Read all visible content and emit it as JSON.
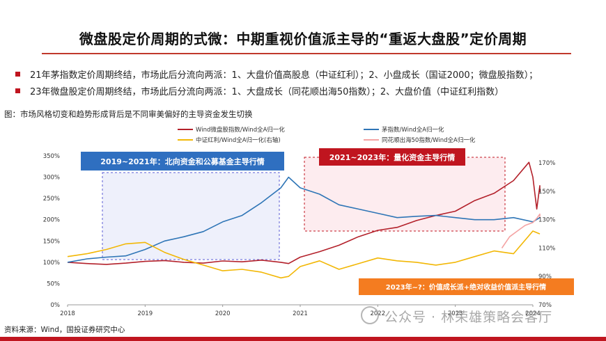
{
  "header": {
    "title": "微盘股定价周期的式微：中期重视价值派主导的“重返大盘股”定价周期",
    "bullets": [
      "21年茅指数定价周期终结，市场此后分流向两派：1、大盘价值高股息（中证红利）；2、小盘成长（国证2000；微盘股指数）；",
      "23年微盘股定价周期终结，市场此后分流向两派：1、大盘成长（同花顺出海50指数）；2、大盘价值（中证红利指数）"
    ],
    "figure_caption": "图：市场风格切变和趋势形成背后是不同审美偏好的主导资金发生切换"
  },
  "footer": {
    "source": "资料来源：Wind，国投证券研究中心",
    "watermark": "公众号 · 林荣雄策略会客厅"
  },
  "colors": {
    "accent": "#c0151f",
    "micro": "#b3202a",
    "mao": "#2e75b6",
    "dividend": "#f2b705",
    "overseas": "#f4a3a3",
    "box_blue": "#2f6fc0",
    "box_red": "#c0151f",
    "box_orange": "#f47c20"
  },
  "chart_data": {
    "type": "line",
    "x_ticks": [
      "2018",
      "2019",
      "2020",
      "2021",
      "2022",
      "2023",
      "2024"
    ],
    "y_left_ticks": [
      "0%",
      "50%",
      "100%",
      "150%",
      "200%",
      "250%",
      "300%",
      "350%"
    ],
    "y_left_range": [
      0,
      350
    ],
    "y_right_ticks": [
      "70%",
      "90%",
      "110%",
      "130%",
      "150%",
      "170%"
    ],
    "y_right_range": [
      70,
      175
    ],
    "legend": [
      "Wind微盘股指数/Wind全A归一化",
      "茅指数/Wind全A归一化",
      "中证红利/Wind全A归一化(右轴)",
      "同花顺出海50指数/Wind全A归一化"
    ],
    "annotations": [
      "2019~2021年：北向资金和公募基金主导行情",
      "2021~2023年：量化资金主导行情",
      "2023年~?：价值成长派+绝对收益价值派主导行情"
    ],
    "series": [
      {
        "name": "Wind微盘股指数/Wind全A归一化",
        "axis": "left",
        "x": [
          2018.0,
          2018.25,
          2018.5,
          2018.75,
          2019.0,
          2019.25,
          2019.5,
          2019.75,
          2020.0,
          2020.25,
          2020.5,
          2020.75,
          2020.85,
          2021.0,
          2021.25,
          2021.5,
          2021.75,
          2022.0,
          2022.25,
          2022.5,
          2022.75,
          2023.0,
          2023.25,
          2023.5,
          2023.75,
          2023.95,
          2024.0,
          2024.05,
          2024.15,
          2024.25
        ],
        "values": [
          100,
          97,
          95,
          98,
          102,
          104,
          100,
          98,
          103,
          101,
          105,
          100,
          97,
          112,
          125,
          140,
          160,
          175,
          182,
          198,
          210,
          220,
          245,
          262,
          292,
          335,
          300,
          225,
          280,
          265
        ]
      },
      {
        "name": "茅指数/Wind全A归一化",
        "axis": "left",
        "x": [
          2018.0,
          2018.25,
          2018.5,
          2018.75,
          2019.0,
          2019.25,
          2019.5,
          2019.75,
          2020.0,
          2020.25,
          2020.5,
          2020.75,
          2020.85,
          2021.0,
          2021.25,
          2021.5,
          2021.75,
          2022.0,
          2022.25,
          2022.5,
          2022.75,
          2023.0,
          2023.25,
          2023.5,
          2023.75,
          2024.0,
          2024.25
        ],
        "values": [
          100,
          108,
          112,
          115,
          130,
          150,
          160,
          172,
          195,
          210,
          240,
          275,
          300,
          275,
          260,
          235,
          225,
          215,
          205,
          208,
          210,
          205,
          200,
          200,
          205,
          195,
          205
        ]
      },
      {
        "name": "中证红利/Wind全A归一化(右轴)",
        "axis": "right",
        "x": [
          2018.0,
          2018.25,
          2018.5,
          2018.75,
          2019.0,
          2019.25,
          2019.5,
          2019.75,
          2020.0,
          2020.25,
          2020.5,
          2020.75,
          2020.85,
          2021.0,
          2021.25,
          2021.5,
          2021.75,
          2022.0,
          2022.25,
          2022.5,
          2022.75,
          2023.0,
          2023.25,
          2023.5,
          2023.75,
          2024.0,
          2024.25
        ],
        "values": [
          104,
          106,
          109,
          113,
          114,
          107,
          102,
          98,
          94,
          95,
          93,
          89,
          90,
          97,
          101,
          95,
          99,
          103,
          101,
          100,
          98,
          100,
          104,
          108,
          106,
          122,
          120
        ]
      },
      {
        "name": "同花顺出海50指数/Wind全A归一化",
        "axis": "right",
        "x": [
          2023.6,
          2023.7,
          2023.8,
          2023.9,
          2024.0,
          2024.05,
          2024.15,
          2024.25
        ],
        "values": [
          110,
          118,
          122,
          126,
          128,
          131,
          134,
          132
        ]
      }
    ],
    "grid": false
  }
}
